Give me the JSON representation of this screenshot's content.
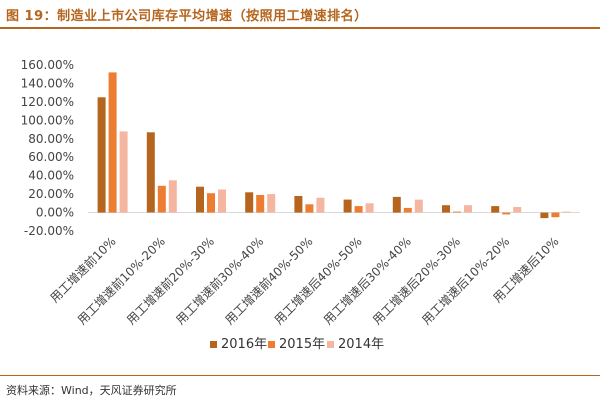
{
  "figure": {
    "title": "图 19：制造业上市公司库存平均增速（按照用工增速排名）",
    "source": "资料来源：Wind，天风证券研究所"
  },
  "chart_data": {
    "type": "bar",
    "categories": [
      "用工增速前10%",
      "用工增速前10%-20%",
      "用工增速前20%-30%",
      "用工增速前30%-40%",
      "用工增速前40%-50%",
      "用工增速后40%-50%",
      "用工增速后30%-40%",
      "用工增速后20%-30%",
      "用工增速后10%-20%",
      "用工增速后10%"
    ],
    "series": [
      {
        "name": "2016年",
        "color": "#b5651d",
        "values": [
          125,
          87,
          28,
          22,
          18,
          14,
          17,
          8,
          7,
          -6
        ]
      },
      {
        "name": "2015年",
        "color": "#ed7d31",
        "values": [
          152,
          29,
          21,
          19,
          9,
          7,
          5,
          1,
          -2,
          -5
        ]
      },
      {
        "name": "2014年",
        "color": "#f4b6a0",
        "values": [
          88,
          35,
          25,
          20,
          16,
          10,
          14,
          8,
          6,
          1
        ]
      }
    ],
    "y_ticks": [
      "-20.00%",
      "0.00%",
      "20.00%",
      "40.00%",
      "60.00%",
      "80.00%",
      "100.00%",
      "120.00%",
      "140.00%",
      "160.00%"
    ],
    "ylim": [
      -20,
      160
    ],
    "y_format": "percent",
    "legend_position": "bottom",
    "grid": false
  }
}
